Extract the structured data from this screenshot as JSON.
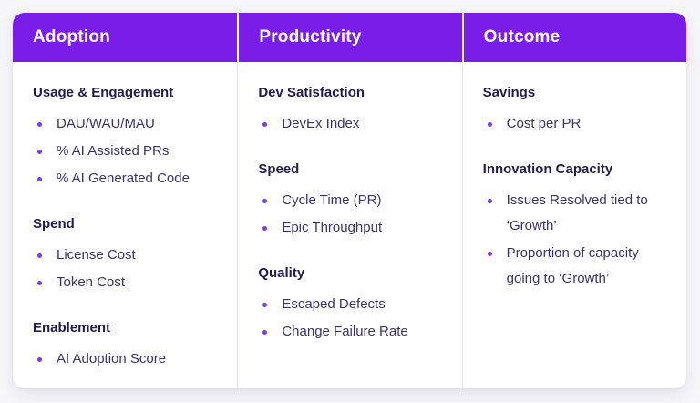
{
  "colors": {
    "header_bg": "#7b1de8",
    "header_text": "#ffffff",
    "section_title_text": "#221c4e",
    "item_text": "#3b3366",
    "bullet": "#7c3aed",
    "card_bg": "#ffffff",
    "page_bg": "#f7f7fa",
    "column_divider": "#e9e2f4"
  },
  "columns": [
    {
      "header": "Adoption",
      "sections": [
        {
          "title": "Usage & Engagement",
          "items": [
            "DAU/WAU/MAU",
            "% AI Assisted PRs",
            "% AI Generated Code"
          ]
        },
        {
          "title": "Spend",
          "items": [
            "License Cost",
            "Token Cost"
          ]
        },
        {
          "title": "Enablement",
          "items": [
            "AI Adoption Score"
          ]
        }
      ]
    },
    {
      "header": "Productivity",
      "sections": [
        {
          "title": "Dev Satisfaction",
          "items": [
            "DevEx Index"
          ]
        },
        {
          "title": "Speed",
          "items": [
            "Cycle Time (PR)",
            "Epic Throughput"
          ]
        },
        {
          "title": "Quality",
          "items": [
            "Escaped Defects",
            "Change Failure Rate"
          ]
        }
      ]
    },
    {
      "header": "Outcome",
      "sections": [
        {
          "title": "Savings",
          "items": [
            "Cost per PR"
          ]
        },
        {
          "title": "Innovation Capacity",
          "items": [
            "Issues Resolved tied to ‘Growth’",
            "Proportion of capacity going to ‘Growth’"
          ]
        }
      ]
    }
  ]
}
